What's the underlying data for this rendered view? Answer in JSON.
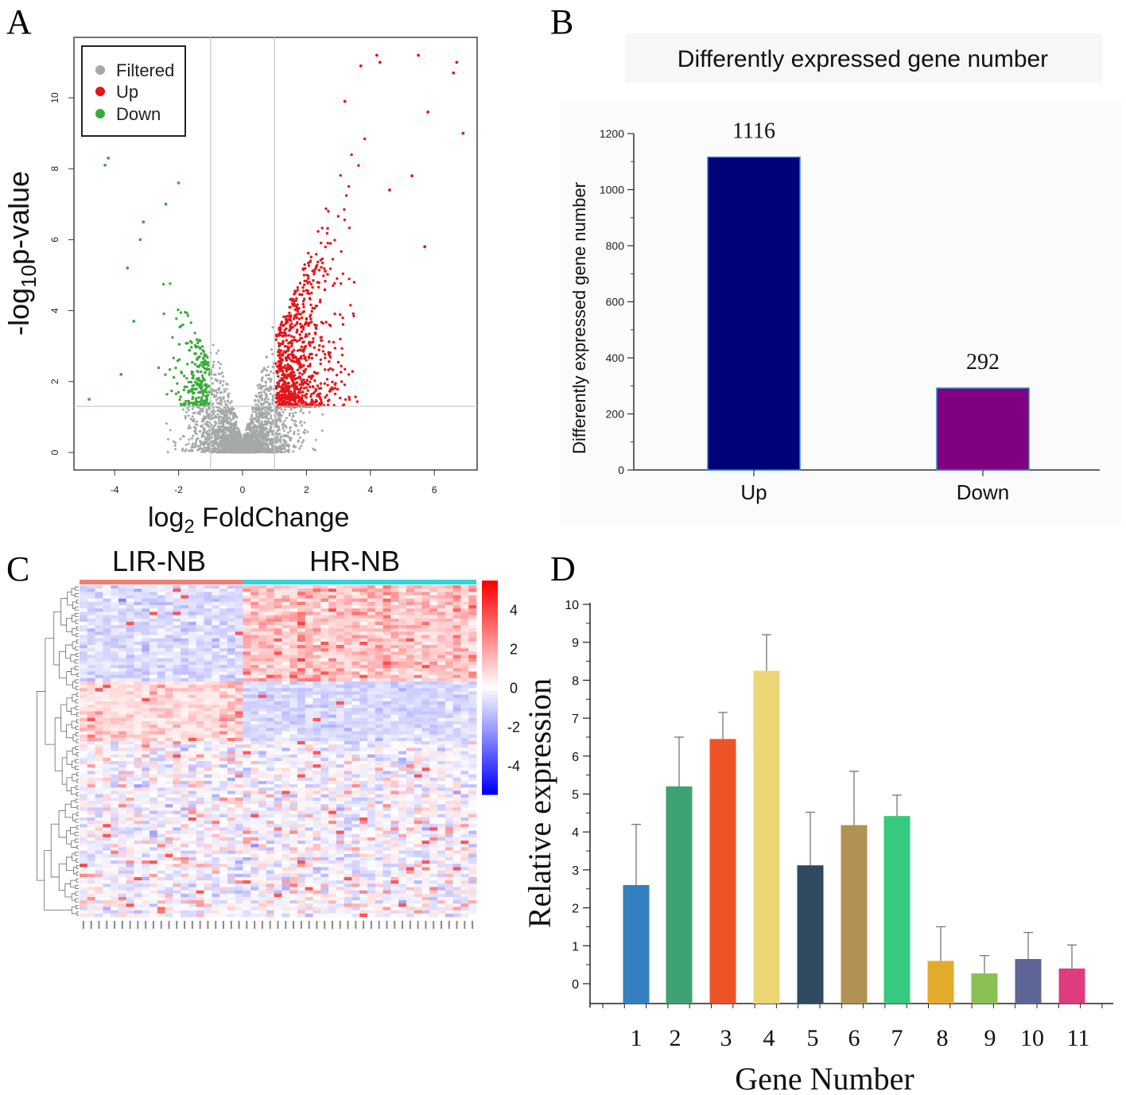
{
  "panel_letters": {
    "a": "A",
    "b": "B",
    "c": "C",
    "d": "D"
  },
  "chart_data": [
    {
      "id": "A",
      "type": "scatter",
      "title": "",
      "xlabel_main": "log",
      "xlabel_sub": "2",
      "xlabel_tail": " FoldChange",
      "ylabel_head": "-log",
      "ylabel_sub": "10",
      "ylabel_tail": "p-value",
      "xlim": [
        -5.0,
        7.3
      ],
      "ylim": [
        -0.5,
        11.7
      ],
      "xticks": [
        -4,
        -2,
        0,
        2,
        4,
        6
      ],
      "yticks": [
        0,
        2,
        4,
        6,
        8,
        10
      ],
      "thresholds": {
        "fold_change": [
          -1,
          1
        ],
        "p_value_line": 1.3
      },
      "legend": {
        "position": "top-left",
        "entries": [
          {
            "label": "Filtered",
            "color": "#a3a8a8"
          },
          {
            "label": "Up",
            "color": "#e3161a"
          },
          {
            "label": "Down",
            "color": "#3aab3a"
          }
        ]
      },
      "series": [
        {
          "name": "Up",
          "color": "#e3161a",
          "count": 1116,
          "highlight_points": [
            [
              6.9,
              9.0
            ],
            [
              6.6,
              10.7
            ],
            [
              6.7,
              11.0
            ],
            [
              5.7,
              5.8
            ],
            [
              5.8,
              9.6
            ],
            [
              5.5,
              11.2
            ],
            [
              4.2,
              11.2
            ],
            [
              4.3,
              11.0
            ],
            [
              3.7,
              10.9
            ],
            [
              3.2,
              9.9
            ],
            [
              4.6,
              7.4
            ],
            [
              5.3,
              7.8
            ]
          ]
        },
        {
          "name": "Down",
          "color": "#3aab3a",
          "count": 292,
          "highlight_points": [
            [
              -4.8,
              1.5
            ],
            [
              -4.2,
              8.3
            ],
            [
              -4.3,
              8.1
            ],
            [
              -3.8,
              2.2
            ],
            [
              -3.1,
              6.5
            ],
            [
              -3.2,
              6.0
            ],
            [
              -2.0,
              7.6
            ],
            [
              -2.4,
              7.0
            ],
            [
              -3.6,
              5.2
            ],
            [
              -3.4,
              3.7
            ]
          ]
        },
        {
          "name": "Filtered",
          "color": "#a3a8a8"
        }
      ]
    },
    {
      "id": "B",
      "type": "bar",
      "title": "Differently expressed gene number",
      "xlabel": "",
      "ylabel": "Differently expressed gene number",
      "ylim": [
        0,
        1200
      ],
      "yticks": [
        0,
        200,
        400,
        600,
        800,
        1000,
        1200
      ],
      "categories": [
        "Up",
        "Down"
      ],
      "values": [
        1116,
        292
      ],
      "colors": [
        "#010178",
        "#800080"
      ],
      "data_labels": [
        "1116",
        "292"
      ]
    },
    {
      "id": "C",
      "type": "heatmap",
      "groups": [
        {
          "label": "LIR-NB",
          "color": "#f27f76",
          "columns": 21
        },
        {
          "label": "HR-NB",
          "color": "#36d3d8",
          "columns": 30
        }
      ],
      "rows": 100,
      "clusters": [
        {
          "rows": [
            0,
            28
          ],
          "high_in": "HR-NB"
        },
        {
          "rows": [
            29,
            46
          ],
          "high_in": "LIR-NB"
        },
        {
          "rows": [
            47,
            99
          ],
          "high_in": "mixed"
        }
      ],
      "colorbar": {
        "min": -5.5,
        "max": 5.5,
        "ticks": [
          "4",
          "2",
          "0",
          "-2",
          "-4"
        ],
        "low_color": "#0000ff",
        "mid_color": "#ffffff",
        "high_color": "#ff0000"
      }
    },
    {
      "id": "D",
      "type": "bar",
      "title": "",
      "xlabel": "Gene Number",
      "ylabel": "Relative expression",
      "ylim": [
        0,
        10
      ],
      "yticks": [
        0,
        1,
        2,
        3,
        4,
        5,
        6,
        7,
        8,
        9,
        10
      ],
      "categories": [
        "1",
        "2",
        "3",
        "4",
        "5",
        "6",
        "7",
        "8",
        "9",
        "10",
        "11"
      ],
      "values": [
        2.6,
        5.2,
        6.45,
        8.25,
        3.12,
        4.18,
        4.42,
        0.6,
        0.27,
        0.65,
        0.4
      ],
      "errors": [
        1.6,
        1.3,
        0.7,
        0.95,
        1.4,
        1.42,
        0.55,
        0.9,
        0.47,
        0.7,
        0.62
      ],
      "colors": [
        "#3280bf",
        "#3fa273",
        "#ed5326",
        "#ecd676",
        "#2f4a60",
        "#b29252",
        "#35ca7f",
        "#e2ab2c",
        "#8bc152",
        "#5c6596",
        "#df3c80"
      ]
    }
  ]
}
